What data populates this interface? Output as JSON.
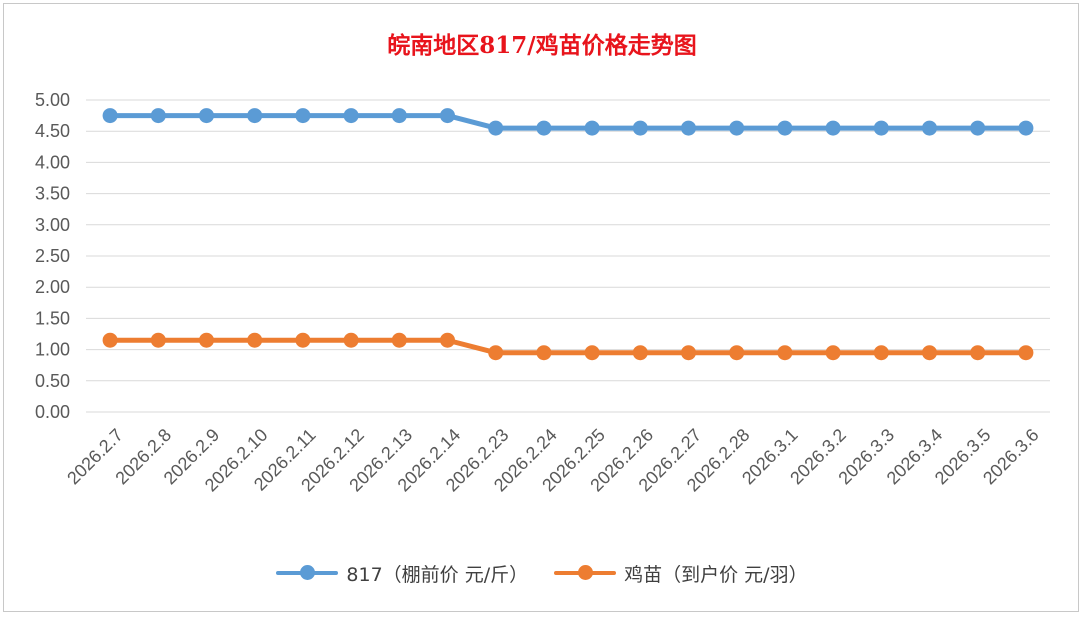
{
  "chart_data": {
    "type": "line",
    "title": "皖南地区817/鸡苗价格走势图",
    "categories": [
      "2026.2.7",
      "2026.2.8",
      "2026.2.9",
      "2026.2.10",
      "2026.2.11",
      "2026.2.12",
      "2026.2.13",
      "2026.2.14",
      "2026.2.23",
      "2026.2.24",
      "2026.2.25",
      "2026.2.26",
      "2026.2.27",
      "2026.2.28",
      "2026.3.1",
      "2026.3.2",
      "2026.3.3",
      "2026.3.4",
      "2026.3.5",
      "2026.3.6"
    ],
    "series": [
      {
        "name": "817（棚前价 元/斤）",
        "color": "#5b9bd5",
        "values": [
          4.75,
          4.75,
          4.75,
          4.75,
          4.75,
          4.75,
          4.75,
          4.75,
          4.55,
          4.55,
          4.55,
          4.55,
          4.55,
          4.55,
          4.55,
          4.55,
          4.55,
          4.55,
          4.55,
          4.55
        ]
      },
      {
        "name": "鸡苗（到户价 元/羽）",
        "color": "#ed7d31",
        "values": [
          1.15,
          1.15,
          1.15,
          1.15,
          1.15,
          1.15,
          1.15,
          1.15,
          0.95,
          0.95,
          0.95,
          0.95,
          0.95,
          0.95,
          0.95,
          0.95,
          0.95,
          0.95,
          0.95,
          0.95
        ]
      }
    ],
    "yticks": [
      "0.00",
      "0.50",
      "1.00",
      "1.50",
      "2.00",
      "2.50",
      "3.00",
      "3.50",
      "4.00",
      "4.50",
      "5.00"
    ],
    "ylim": [
      0,
      5
    ],
    "grid": true,
    "legend": "bottom"
  }
}
